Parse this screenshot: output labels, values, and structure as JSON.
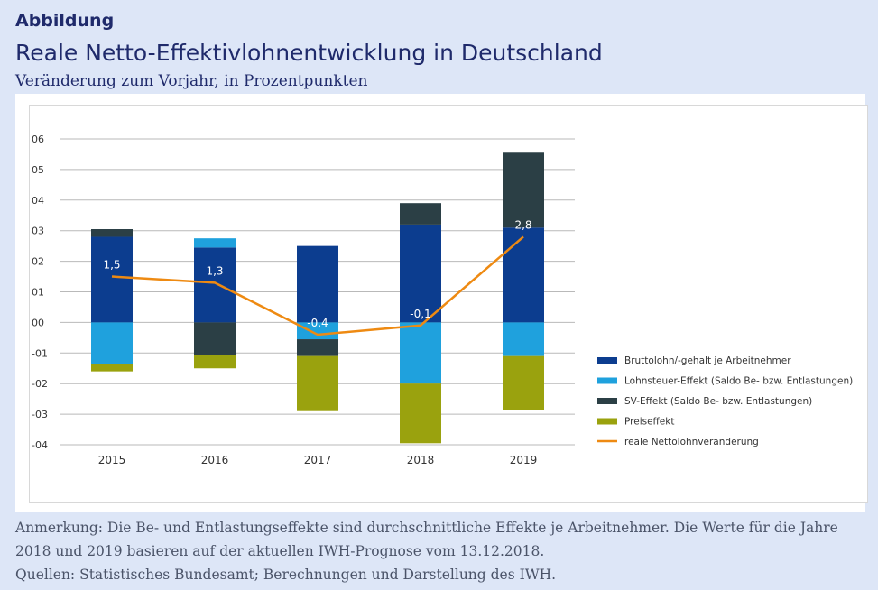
{
  "header": {
    "label": "Abbildung",
    "title": "Reale Netto-Effektivlohnentwicklung in Deutschland",
    "subtitle": "Veränderung zum Vorjahr, in Prozentpunkten"
  },
  "footer": {
    "note_line1": "Anmerkung: Die Be- und Entlastungseffekte sind durchschnittliche Effekte je Arbeitnehmer. Die Werte für die Jahre",
    "note_line2": "2018 und 2019 basieren auf der aktuellen IWH-Prognose vom 13.12.2018.",
    "sources": "Quellen: Statistisches Bundesamt; Berechnungen und Darstellung des IWH."
  },
  "chart_data": {
    "type": "bar",
    "stacked": true,
    "categories": [
      "2015",
      "2016",
      "2017",
      "2018",
      "2019"
    ],
    "ylim": [
      -4,
      6
    ],
    "yticks": [
      6,
      5,
      4,
      3,
      2,
      1,
      0,
      -1,
      -2,
      -3,
      -4
    ],
    "ytick_labels": [
      "06",
      "05",
      "04",
      "03",
      "02",
      "01",
      "00",
      "-01",
      "-02",
      "-03",
      "-04"
    ],
    "grid": true,
    "legend_position": "right",
    "series": [
      {
        "name": "Bruttolohn/-gehalt je Arbeitnehmer",
        "color": "#0c3d8f",
        "values": [
          2.8,
          2.45,
          2.5,
          3.2,
          3.1
        ]
      },
      {
        "name": "Lohnsteuer-Effekt (Saldo Be- bzw. Entlastungen)",
        "color": "#1fa1dd",
        "values": [
          -1.35,
          0.3,
          -0.55,
          -2.0,
          -1.1
        ]
      },
      {
        "name": "SV-Effekt (Saldo Be- bzw. Entlastungen)",
        "color": "#2b3f45",
        "values": [
          0.25,
          -1.05,
          -0.55,
          0.7,
          2.45
        ]
      },
      {
        "name": "Preiseffekt",
        "color": "#9aa20e",
        "values": [
          -0.25,
          -0.45,
          -1.8,
          -1.95,
          -1.75
        ]
      }
    ],
    "line": {
      "name": "reale Nettolohnveränderung",
      "color": "#ee8a12",
      "values": [
        1.5,
        1.3,
        -0.4,
        -0.1,
        2.8
      ],
      "labels": [
        "1,5",
        "1,3",
        "-0,4",
        "-0,1",
        "2,8"
      ]
    }
  }
}
